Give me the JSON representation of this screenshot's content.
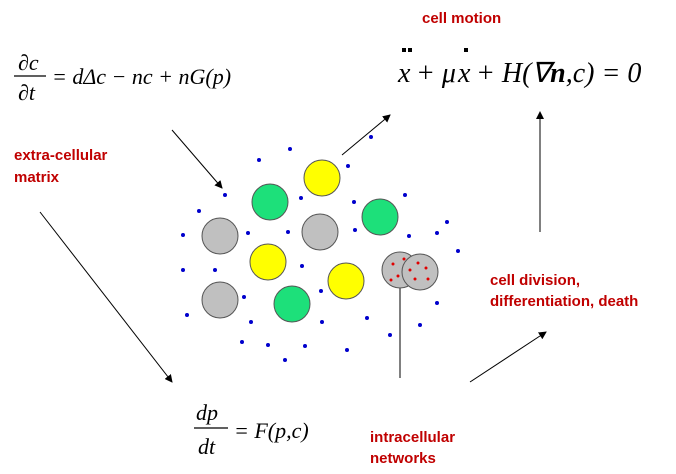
{
  "equations": {
    "chemical": {
      "numerator": "∂c",
      "denominator": "∂t",
      "rhs": "= dΔc − nc + nG(p)"
    },
    "motion": {
      "parts": [
        "x",
        "+ μ",
        "x",
        "+ H(∇",
        "n",
        ",c) = 0"
      ]
    },
    "matrix": {
      "numerator": "dp",
      "denominator": "dt",
      "rhs": "= F(p,c)"
    }
  },
  "labels": {
    "cell_motion": "cell motion",
    "extracellular": [
      "extra-cellular",
      "matrix"
    ],
    "division": [
      "cell division,",
      "differentiation, death"
    ],
    "intracellular": [
      "intracellular",
      "networks"
    ]
  }
}
